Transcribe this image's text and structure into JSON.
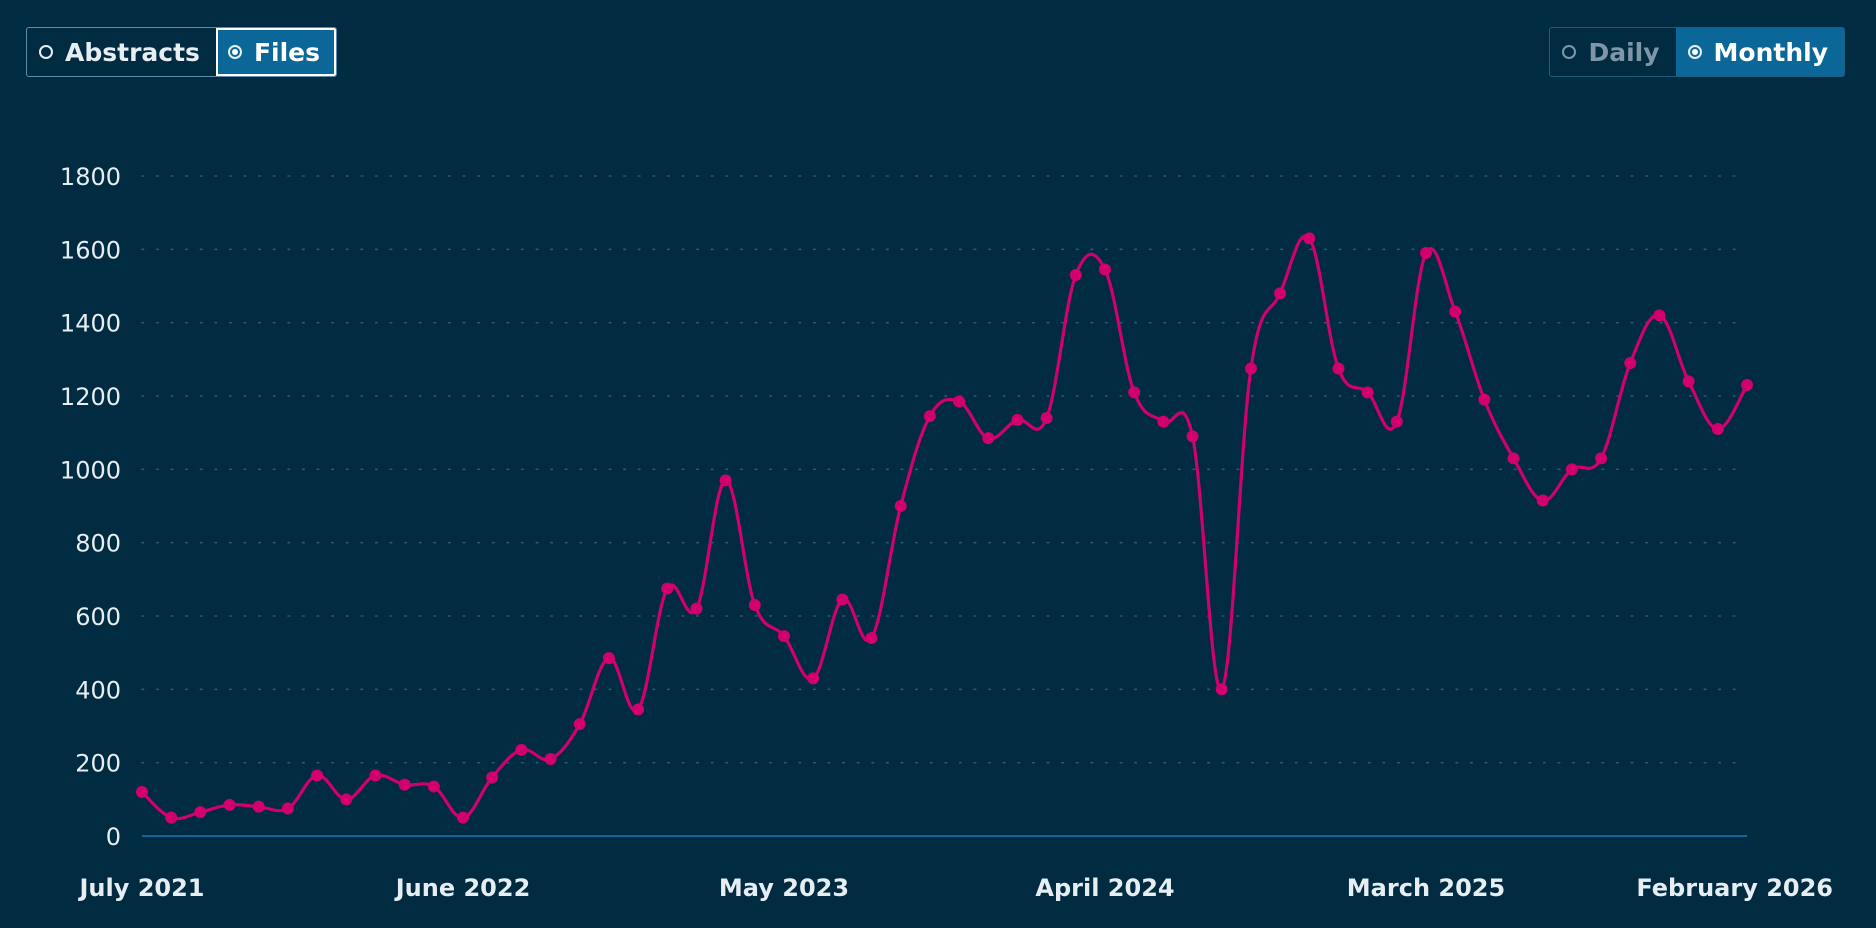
{
  "toggles": {
    "left": [
      {
        "label": "Abstracts",
        "active": false
      },
      {
        "label": "Files",
        "active": true
      }
    ],
    "right": [
      {
        "label": "Daily",
        "active": false
      },
      {
        "label": "Monthly",
        "active": true
      }
    ]
  },
  "colors": {
    "background": "#002b40",
    "line": "#d1006e",
    "axis": "#0a6797",
    "grid": "#2c5a70",
    "text": "#e6eef4"
  },
  "chart_data": {
    "type": "line",
    "xlabel": "",
    "ylabel": "",
    "ylim": [
      0,
      1800
    ],
    "yticks": [
      0,
      200,
      400,
      600,
      800,
      1000,
      1200,
      1400,
      1600,
      1800
    ],
    "xtick_labels": [
      {
        "month": "2021-07",
        "label": "July 2021"
      },
      {
        "month": "2022-06",
        "label": "June 2022"
      },
      {
        "month": "2023-05",
        "label": "May 2023"
      },
      {
        "month": "2024-04",
        "label": "April 2024"
      },
      {
        "month": "2025-03",
        "label": "March 2025"
      },
      {
        "month": "2026-02",
        "label": "February 2026"
      }
    ],
    "grid": true,
    "series": [
      {
        "x": [
          "2021-07",
          "2021-08",
          "2021-09",
          "2021-10",
          "2021-11",
          "2021-12",
          "2022-01",
          "2022-02",
          "2022-03",
          "2022-04",
          "2022-05",
          "2022-06",
          "2022-07",
          "2022-08",
          "2022-09",
          "2022-10",
          "2022-11",
          "2022-12",
          "2023-01",
          "2023-02",
          "2023-03",
          "2023-04",
          "2023-05",
          "2023-06",
          "2023-07",
          "2023-08",
          "2023-09",
          "2023-10",
          "2023-11",
          "2023-12",
          "2024-01",
          "2024-02",
          "2024-03",
          "2024-04",
          "2024-05",
          "2024-06",
          "2024-07",
          "2024-08",
          "2024-09",
          "2024-10",
          "2024-11",
          "2024-12",
          "2025-01",
          "2025-02",
          "2025-03",
          "2025-04",
          "2025-05",
          "2025-06",
          "2025-07",
          "2025-08",
          "2025-09",
          "2025-10",
          "2025-11",
          "2025-12",
          "2026-01",
          "2026-02"
        ],
        "values": [
          120,
          50,
          65,
          85,
          80,
          75,
          165,
          100,
          165,
          140,
          135,
          50,
          160,
          235,
          210,
          305,
          485,
          345,
          675,
          620,
          970,
          630,
          545,
          430,
          645,
          540,
          900,
          1145,
          1185,
          1085,
          1135,
          1140,
          1530,
          1545,
          1210,
          1130,
          1090,
          400,
          1275,
          1480,
          1630,
          1275,
          1210,
          1130,
          1590,
          1430,
          1190,
          1030,
          915,
          1000,
          1030,
          1290,
          1420,
          1240,
          1110,
          1230
        ]
      }
    ]
  }
}
